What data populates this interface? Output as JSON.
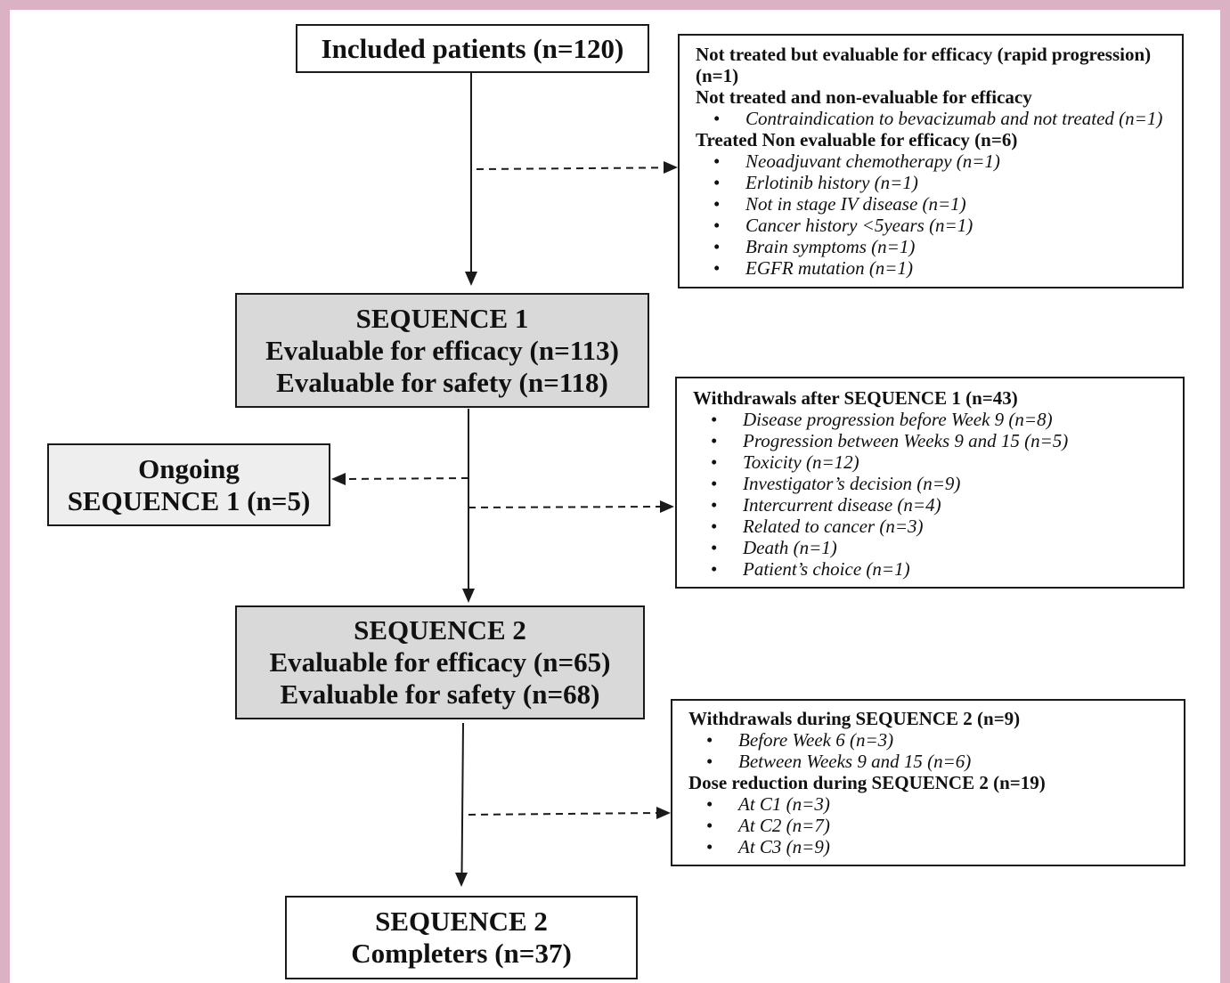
{
  "included": {
    "label": "Included patients (n=120)"
  },
  "exclusions": {
    "not_treated_evaluable": "Not treated but evaluable for efficacy (rapid progression) (n=1)",
    "not_treated_non_evaluable": {
      "heading": "Not treated and non-evaluable for efficacy",
      "items": [
        "Contraindication to bevacizumab and not treated (n=1)"
      ]
    },
    "treated_non_evaluable": {
      "heading": "Treated Non evaluable for efficacy (n=6)",
      "items": [
        "Neoadjuvant chemotherapy (n=1)",
        "Erlotinib history (n=1)",
        "Not in stage IV disease (n=1)",
        "Cancer history <5years (n=1)",
        "Brain symptoms (n=1)",
        "EGFR mutation (n=1)"
      ]
    }
  },
  "sequence1": {
    "title": "SEQUENCE 1",
    "efficacy": "Evaluable for efficacy (n=113)",
    "safety": "Evaluable for safety (n=118)"
  },
  "ongoing": {
    "label": "Ongoing",
    "count": "SEQUENCE 1 (n=5)"
  },
  "withdrawals_sequence1": {
    "heading": "Withdrawals after SEQUENCE 1 (n=43)",
    "items": [
      "Disease progression before Week 9 (n=8)",
      "Progression between Weeks 9 and 15 (n=5)",
      "Toxicity (n=12)",
      "Investigator’s decision (n=9)",
      "Intercurrent disease (n=4)",
      "Related to cancer (n=3)",
      "Death (n=1)",
      "Patient’s choice (n=1)"
    ]
  },
  "sequence2": {
    "title": "SEQUENCE 2",
    "efficacy": "Evaluable for efficacy (n=65)",
    "safety": "Evaluable for safety (n=68)"
  },
  "sequence2_events": {
    "withdrawals": {
      "heading": "Withdrawals during SEQUENCE 2 (n=9)",
      "items": [
        "Before Week 6 (n=3)",
        "Between Weeks 9 and 15 (n=6)"
      ]
    },
    "dose_reduction": {
      "heading": "Dose reduction during SEQUENCE 2 (n=19)",
      "items": [
        "At C1 (n=3)",
        "At C2 (n=7)",
        "At C3 (n=9)"
      ]
    }
  },
  "completers": {
    "title": "SEQUENCE 2",
    "label": "Completers (n=37)"
  },
  "bullet": "•",
  "colors": {
    "frame": "#dbb1c4",
    "sequence_box_fill": "#d9d9d9",
    "ongoing_box_fill": "#eeeeee",
    "box_border": "#1a1a1a",
    "text": "#111111"
  }
}
